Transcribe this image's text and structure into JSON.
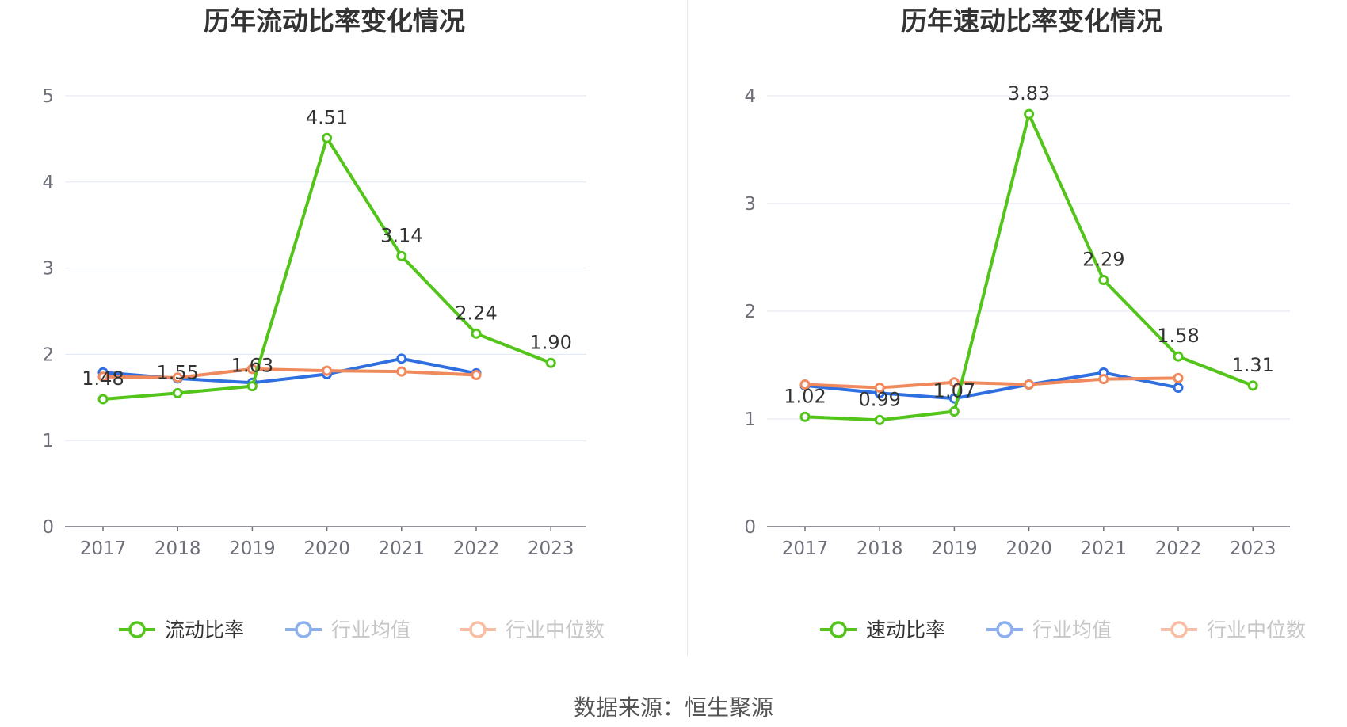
{
  "source_text": "数据来源：恒生聚源",
  "colors": {
    "main": "#52c41a",
    "avg": "#2f6fe0",
    "median": "#f08a5d",
    "grid": "#e0e6f1",
    "axis": "#6e7079",
    "text": "#333333",
    "legend_muted": "#999999"
  },
  "chart_data": [
    {
      "type": "line",
      "title": "历年流动比率变化情况",
      "x": [
        "2017",
        "2018",
        "2019",
        "2020",
        "2021",
        "2022",
        "2023"
      ],
      "ylim": [
        0,
        5
      ],
      "yticks": [
        "0",
        "1",
        "2",
        "3",
        "4",
        "5"
      ],
      "grid": true,
      "legend_position": "bottom-center",
      "series": [
        {
          "name": "流动比率",
          "values": [
            1.48,
            1.55,
            1.63,
            4.51,
            3.14,
            2.24,
            1.9
          ],
          "labels": [
            "1.48",
            "1.55",
            "1.63",
            "4.51",
            "3.14",
            "2.24",
            "1.90"
          ]
        },
        {
          "name": "行业均值",
          "values": [
            1.79,
            1.72,
            1.67,
            1.77,
            1.95,
            1.78,
            null
          ]
        },
        {
          "name": "行业中位数",
          "values": [
            1.74,
            1.73,
            1.83,
            1.81,
            1.8,
            1.76,
            null
          ]
        }
      ]
    },
    {
      "type": "line",
      "title": "历年速动比率变化情况",
      "x": [
        "2017",
        "2018",
        "2019",
        "2020",
        "2021",
        "2022",
        "2023"
      ],
      "ylim": [
        0,
        4
      ],
      "yticks": [
        "0",
        "1",
        "2",
        "3",
        "4"
      ],
      "grid": true,
      "legend_position": "bottom-center",
      "series": [
        {
          "name": "速动比率",
          "values": [
            1.02,
            0.99,
            1.07,
            3.83,
            2.29,
            1.58,
            1.31
          ],
          "labels": [
            "1.02",
            "0.99",
            "1.07",
            "3.83",
            "2.29",
            "1.58",
            "1.31"
          ]
        },
        {
          "name": "行业均值",
          "values": [
            1.31,
            1.24,
            1.19,
            1.32,
            1.43,
            1.29,
            null
          ]
        },
        {
          "name": "行业中位数",
          "values": [
            1.32,
            1.29,
            1.34,
            1.32,
            1.37,
            1.38,
            null
          ]
        }
      ]
    }
  ]
}
